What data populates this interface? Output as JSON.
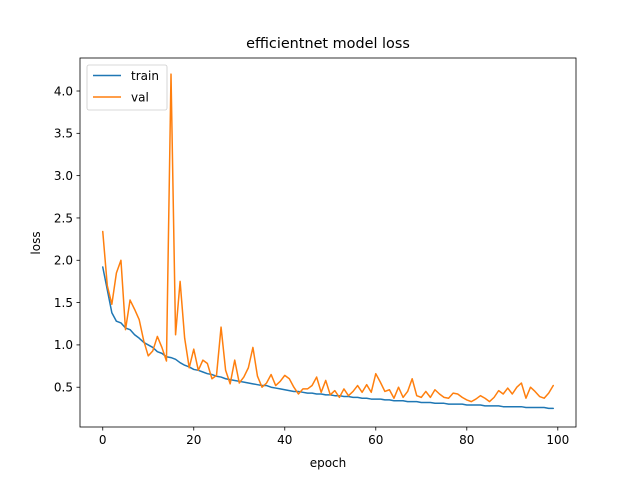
{
  "chart_data": {
    "type": "line",
    "title": "efficientnet model loss",
    "xlabel": "epoch",
    "ylabel": "loss",
    "xlim": [
      -5,
      104
    ],
    "ylim": [
      0.03,
      4.39
    ],
    "xticks": [
      0,
      20,
      40,
      60,
      80,
      100
    ],
    "yticks": [
      0.5,
      1.0,
      1.5,
      2.0,
      2.5,
      3.0,
      3.5,
      4.0
    ],
    "xtick_labels": [
      "0",
      "20",
      "40",
      "60",
      "80",
      "100"
    ],
    "ytick_labels": [
      "0.5",
      "1.0",
      "1.5",
      "2.0",
      "2.5",
      "3.0",
      "3.5",
      "4.0"
    ],
    "legend": {
      "position": "upper-left"
    },
    "grid": false,
    "series": [
      {
        "name": "train",
        "color": "#1f77b4",
        "values": [
          1.92,
          1.65,
          1.38,
          1.28,
          1.26,
          1.2,
          1.18,
          1.12,
          1.08,
          1.03,
          1.0,
          0.97,
          0.92,
          0.9,
          0.86,
          0.85,
          0.83,
          0.79,
          0.76,
          0.74,
          0.71,
          0.7,
          0.68,
          0.66,
          0.65,
          0.63,
          0.62,
          0.6,
          0.59,
          0.58,
          0.57,
          0.56,
          0.55,
          0.54,
          0.53,
          0.52,
          0.52,
          0.5,
          0.49,
          0.48,
          0.47,
          0.46,
          0.45,
          0.45,
          0.44,
          0.43,
          0.43,
          0.42,
          0.42,
          0.41,
          0.41,
          0.4,
          0.4,
          0.39,
          0.39,
          0.38,
          0.38,
          0.37,
          0.37,
          0.36,
          0.36,
          0.36,
          0.35,
          0.35,
          0.34,
          0.34,
          0.34,
          0.33,
          0.33,
          0.33,
          0.32,
          0.32,
          0.32,
          0.31,
          0.31,
          0.31,
          0.3,
          0.3,
          0.3,
          0.3,
          0.29,
          0.29,
          0.29,
          0.29,
          0.28,
          0.28,
          0.28,
          0.28,
          0.27,
          0.27,
          0.27,
          0.27,
          0.27,
          0.26,
          0.26,
          0.26,
          0.26,
          0.26,
          0.25,
          0.25
        ]
      },
      {
        "name": "val",
        "color": "#ff7f0e",
        "values": [
          2.34,
          1.7,
          1.48,
          1.85,
          2.0,
          1.18,
          1.53,
          1.42,
          1.3,
          1.05,
          0.87,
          0.93,
          1.1,
          0.97,
          0.81,
          4.2,
          1.12,
          1.75,
          1.08,
          0.73,
          0.95,
          0.7,
          0.82,
          0.78,
          0.6,
          0.64,
          1.21,
          0.7,
          0.54,
          0.82,
          0.55,
          0.62,
          0.73,
          0.97,
          0.63,
          0.5,
          0.55,
          0.65,
          0.52,
          0.57,
          0.64,
          0.6,
          0.5,
          0.42,
          0.48,
          0.48,
          0.52,
          0.62,
          0.44,
          0.58,
          0.41,
          0.46,
          0.38,
          0.48,
          0.4,
          0.45,
          0.52,
          0.44,
          0.53,
          0.44,
          0.66,
          0.56,
          0.45,
          0.47,
          0.37,
          0.5,
          0.38,
          0.45,
          0.6,
          0.4,
          0.38,
          0.45,
          0.38,
          0.47,
          0.42,
          0.38,
          0.37,
          0.43,
          0.42,
          0.38,
          0.35,
          0.33,
          0.36,
          0.4,
          0.37,
          0.33,
          0.38,
          0.46,
          0.42,
          0.49,
          0.42,
          0.5,
          0.55,
          0.37,
          0.5,
          0.45,
          0.39,
          0.37,
          0.43,
          0.52
        ]
      }
    ]
  }
}
